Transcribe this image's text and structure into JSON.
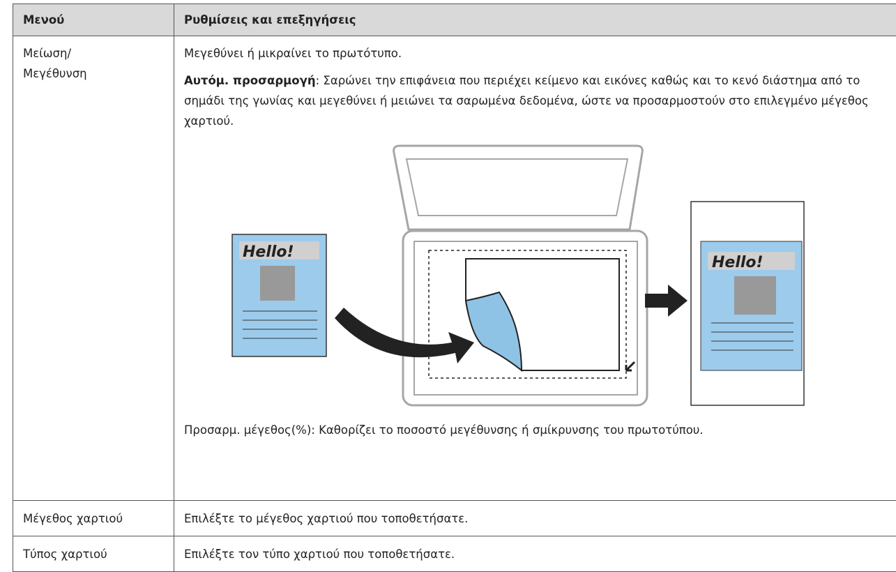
{
  "table": {
    "header": [
      "Μενού",
      "Ρυθμίσεις και επεξηγήσεις"
    ],
    "rows": [
      {
        "menu": "Μείωση/\nΜεγέθυνση",
        "intro": "Μεγεθύνει ή μικραίνει το πρωτότυπο.",
        "term": "Αυτόμ. προσαρμογή",
        "term_text": ": Σαρώνει την επιφάνεια που περιέχει κείμενο και εικόνες καθώς και το κενό διάστημα από το σημάδι της γωνίας και μεγεθύνει ή μειώνει τα σαρωμένα δεδομένα, ώστε να προσαρμοστούν στο επιλεγμένο μέγεθος χαρτιού.",
        "illustration": {
          "original_label": "Hello!",
          "result_label": "Hello!"
        },
        "outro": "Προσαρμ. μέγεθος(%): Καθορίζει το ποσοστό μεγέθυνσης ή σμίκρυνσης του πρωτοτύπου."
      },
      {
        "menu": "Μέγεθος χαρτιού",
        "intro": "Επιλέξτε το μέγεθος χαρτιού που τοποθετήσατε."
      },
      {
        "menu": "Τύπος χαρτιού",
        "intro": "Επιλέξτε τον τύπο χαρτιού που τοποθετήσατε."
      }
    ]
  }
}
